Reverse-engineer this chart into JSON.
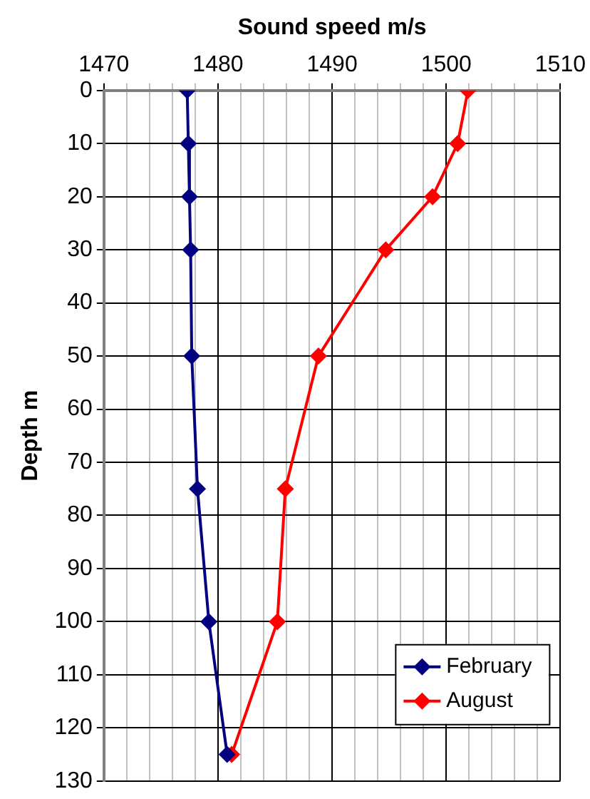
{
  "chart_data": {
    "type": "line",
    "xlabel": "Sound speed m/s",
    "ylabel": "Depth m",
    "xlim": [
      1470,
      1510
    ],
    "xticks": [
      1470,
      {
        "value": 1472,
        "label": null
      },
      {
        "value": 1474,
        "label": null
      },
      {
        "value": 1476,
        "label": null
      },
      {
        "value": 1478,
        "label": null
      },
      1480,
      {
        "value": 1482,
        "label": null
      },
      {
        "value": 1484,
        "label": null
      },
      {
        "value": 1486,
        "label": null
      },
      {
        "value": 1488,
        "label": null
      },
      1490,
      {
        "value": 1492,
        "label": null
      },
      {
        "value": 1494,
        "label": null
      },
      {
        "value": 1496,
        "label": null
      },
      {
        "value": 1498,
        "label": null
      },
      1500,
      {
        "value": 1502,
        "label": null
      },
      {
        "value": 1504,
        "label": null
      },
      {
        "value": 1506,
        "label": null
      },
      {
        "value": 1508,
        "label": null
      },
      1510
    ],
    "ylim": [
      130,
      0
    ],
    "yticks": [
      0,
      10,
      20,
      30,
      40,
      50,
      60,
      70,
      80,
      90,
      100,
      110,
      120,
      130
    ],
    "grid": true,
    "legend": "bottom right",
    "marker": "diamond",
    "line_style": "solid",
    "series": [
      {
        "name": "February",
        "color": "#000080",
        "x": [
          1477.3,
          1477.4,
          1477.5,
          1477.6,
          1477.7,
          1478.2,
          1479.2,
          1480.8
        ],
        "values": [
          0,
          10,
          20,
          30,
          50,
          75,
          100,
          125
        ]
      },
      {
        "name": "August",
        "color": "#ff0000",
        "x": [
          1501.9,
          1501,
          1498.8,
          1494.7,
          1488.8,
          1485.9,
          1485.2,
          1481.2
        ],
        "values": [
          0,
          10,
          20,
          30,
          50,
          75,
          100,
          125
        ]
      }
    ]
  }
}
